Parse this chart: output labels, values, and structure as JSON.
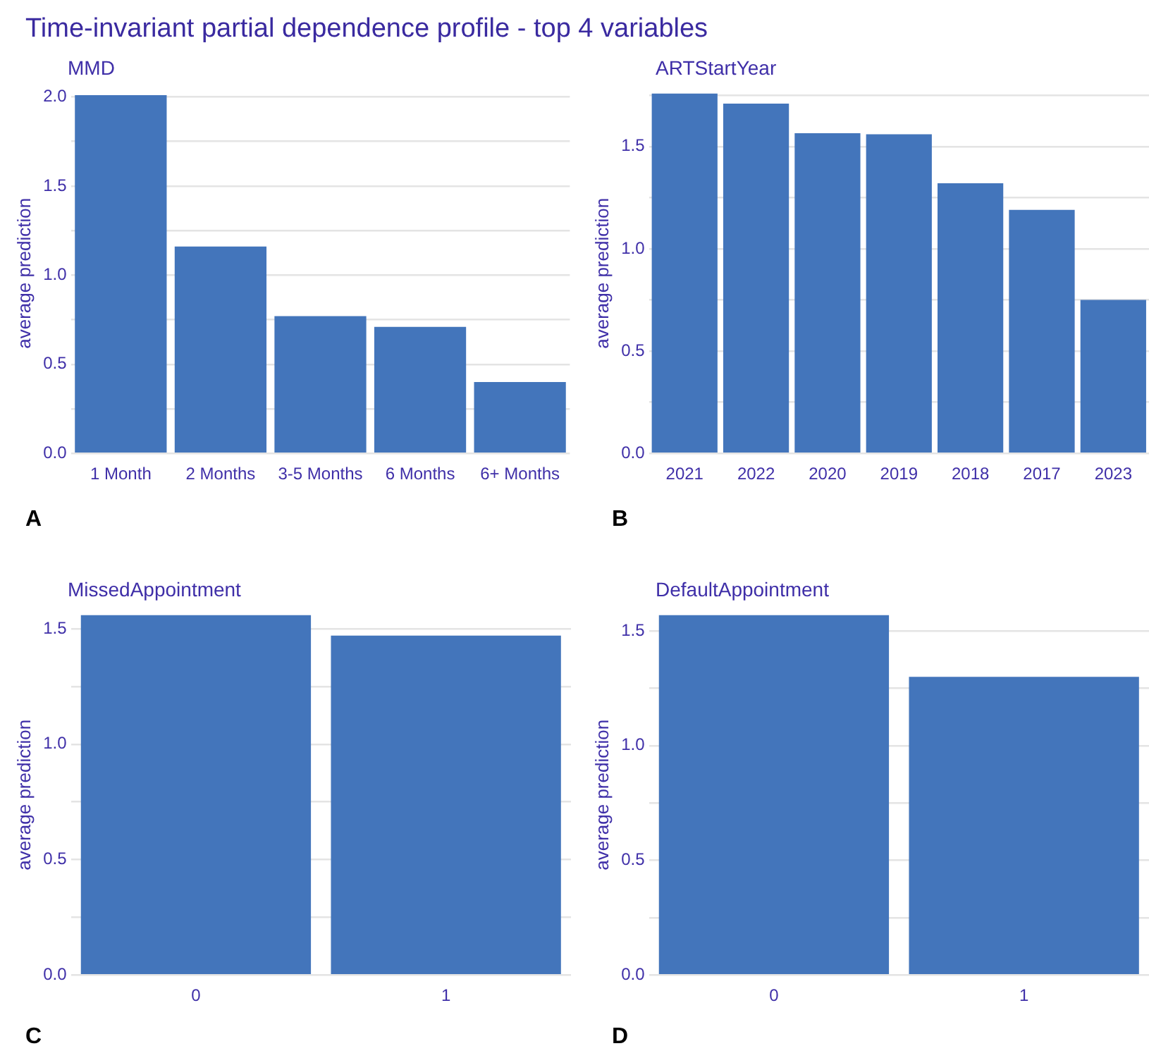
{
  "chart_data": [
    {
      "type": "bar",
      "title": "Time-invariant partial dependence profile - top 4 variables",
      "subtitle": "MMD",
      "ylabel": "average prediction",
      "categories": [
        "1 Month",
        "2 Months",
        "3-5 Months",
        "6 Months",
        "6+ Months"
      ],
      "values": [
        2.01,
        1.16,
        0.77,
        0.71,
        0.4
      ],
      "color": "#4375bb",
      "ylim": [
        0,
        2.02
      ],
      "yticks": [
        {
          "value": 0,
          "label": "0.0"
        },
        {
          "value": 0.25,
          "label": null
        },
        {
          "value": 0.5,
          "label": "0.5"
        },
        {
          "value": 0.75,
          "label": null
        },
        {
          "value": 1,
          "label": "1.0"
        },
        {
          "value": 1.25,
          "label": null
        },
        {
          "value": 1.5,
          "label": "1.5"
        },
        {
          "value": 1.75,
          "label": null
        },
        {
          "value": 2,
          "label": "2.0"
        }
      ],
      "grid": "y",
      "annotations": [
        "A"
      ]
    },
    {
      "type": "bar",
      "subtitle": "ARTStartYear",
      "ylabel": "average prediction",
      "categories": [
        "2021",
        "2022",
        "2020",
        "2019",
        "2018",
        "2017",
        "2023"
      ],
      "values": [
        1.76,
        1.71,
        1.565,
        1.56,
        1.32,
        1.19,
        0.75
      ],
      "color": "#4375bb",
      "ylim": [
        0,
        1.76
      ],
      "yticks": [
        {
          "value": 0,
          "label": "0.0"
        },
        {
          "value": 0.25,
          "label": null
        },
        {
          "value": 0.5,
          "label": "0.5"
        },
        {
          "value": 0.75,
          "label": null
        },
        {
          "value": 1,
          "label": "1.0"
        },
        {
          "value": 1.25,
          "label": null
        },
        {
          "value": 1.5,
          "label": "1.5"
        },
        {
          "value": 1.75,
          "label": null
        }
      ],
      "grid": "y",
      "annotations": [
        "B"
      ]
    },
    {
      "type": "bar",
      "subtitle": "MissedAppointment",
      "ylabel": "average prediction",
      "categories": [
        "0",
        "1"
      ],
      "values": [
        1.56,
        1.47
      ],
      "color": "#4375bb",
      "ylim": [
        0,
        1.56
      ],
      "yticks": [
        {
          "value": 0,
          "label": "0.0"
        },
        {
          "value": 0.25,
          "label": null
        },
        {
          "value": 0.5,
          "label": "0.5"
        },
        {
          "value": 0.75,
          "label": null
        },
        {
          "value": 1,
          "label": "1.0"
        },
        {
          "value": 1.25,
          "label": null
        },
        {
          "value": 1.5,
          "label": "1.5"
        }
      ],
      "grid": "y",
      "annotations": [
        "C"
      ]
    },
    {
      "type": "bar",
      "subtitle": "DefaultAppointment",
      "ylabel": "average prediction",
      "categories": [
        "0",
        "1"
      ],
      "values": [
        1.57,
        1.3
      ],
      "color": "#4375bb",
      "ylim": [
        0,
        1.57
      ],
      "yticks": [
        {
          "value": 0,
          "label": "0.0"
        },
        {
          "value": 0.25,
          "label": null
        },
        {
          "value": 0.5,
          "label": "0.5"
        },
        {
          "value": 0.75,
          "label": null
        },
        {
          "value": 1,
          "label": "1.0"
        },
        {
          "value": 1.25,
          "label": null
        },
        {
          "value": 1.5,
          "label": "1.5"
        }
      ],
      "grid": "y",
      "annotations": [
        "D"
      ]
    }
  ]
}
